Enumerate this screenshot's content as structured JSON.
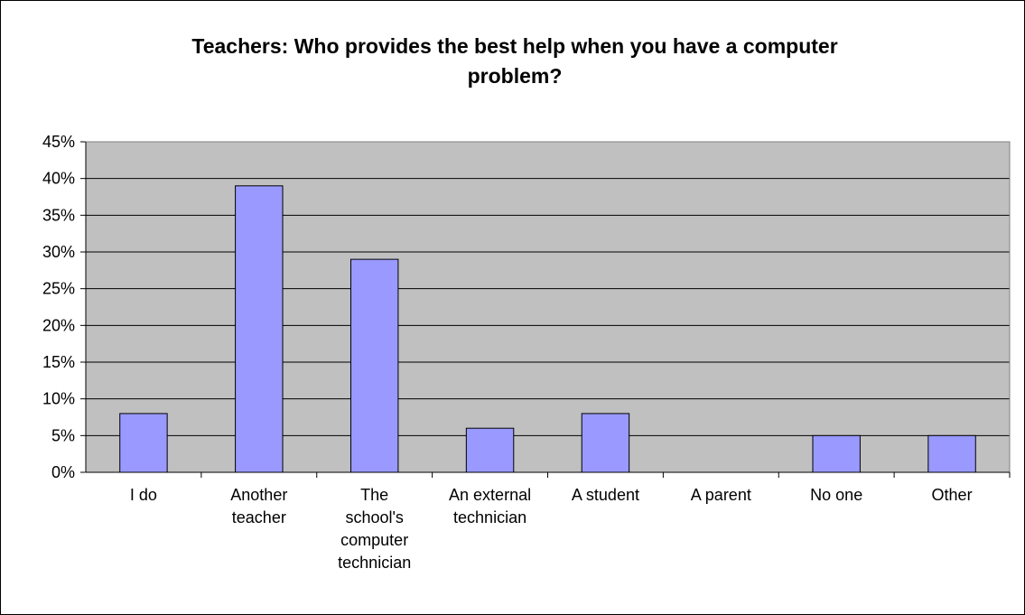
{
  "chart_data": {
    "type": "bar",
    "title": "Teachers: Who provides the best help when you have a computer\nproblem?",
    "categories": [
      [
        "I do"
      ],
      [
        "Another",
        "teacher"
      ],
      [
        "The",
        "school's",
        "computer",
        "technician"
      ],
      [
        "An external",
        "technician"
      ],
      [
        "A student"
      ],
      [
        "A parent"
      ],
      [
        "No one"
      ],
      [
        "Other"
      ]
    ],
    "values": [
      8,
      39,
      29,
      6,
      8,
      0,
      5,
      5
    ],
    "unit": "%",
    "ylim": [
      0,
      45
    ],
    "yticks": [
      "0%",
      "5%",
      "10%",
      "15%",
      "20%",
      "25%",
      "30%",
      "35%",
      "40%",
      "45%"
    ],
    "grid": true,
    "legend": "none",
    "colors": {
      "bar_fill": "#9999ff",
      "bar_stroke": "#000000",
      "plot_background": "#c0c0c0",
      "gridline": "#000000"
    }
  }
}
